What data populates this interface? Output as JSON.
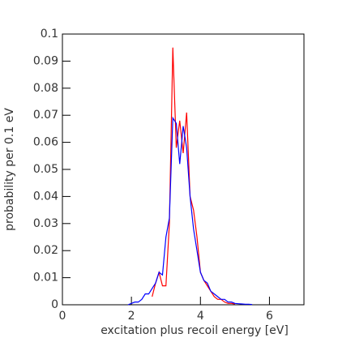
{
  "chart_data": {
    "type": "line",
    "xlabel": "excitation plus recoil energy    [eV]",
    "ylabel": "probability per 0.1 eV",
    "x": [
      1.9,
      2.0,
      2.1,
      2.2,
      2.3,
      2.4,
      2.5,
      2.6,
      2.7,
      2.8,
      2.9,
      3.0,
      3.1,
      3.2,
      3.3,
      3.4,
      3.5,
      3.6,
      3.7,
      3.8,
      3.9,
      4.0,
      4.1,
      4.2,
      4.3,
      4.4,
      4.5,
      4.6,
      4.7,
      4.8,
      4.9,
      5.0,
      5.1,
      5.2,
      5.3,
      5.4,
      5.5
    ],
    "series": [
      {
        "color": "#ff0000",
        "values": [
          null,
          null,
          null,
          null,
          null,
          null,
          null,
          0.003,
          0.008,
          0.012,
          0.007,
          0.007,
          0.03,
          0.095,
          0.058,
          0.068,
          0.056,
          0.071,
          0.04,
          0.035,
          0.025,
          0.012,
          0.009,
          0.007,
          0.005,
          0.003,
          0.002,
          0.002,
          0.001,
          0.0005,
          0.0005,
          0.0003,
          null,
          null,
          null,
          null,
          null
        ]
      },
      {
        "color": "#0000ff",
        "values": [
          0,
          0.0005,
          0.001,
          0.001,
          0.002,
          0.004,
          0.004,
          0.006,
          0.008,
          0.012,
          0.011,
          0.025,
          0.032,
          0.069,
          0.067,
          0.052,
          0.066,
          0.058,
          0.04,
          0.028,
          0.02,
          0.012,
          0.009,
          0.008,
          0.005,
          0.004,
          0.003,
          0.002,
          0.002,
          0.001,
          0.001,
          0.0005,
          0.0004,
          0.0003,
          0.0002,
          0.0002,
          0.0001
        ]
      }
    ],
    "xlim": [
      0,
      7
    ],
    "xticks": [
      0,
      2,
      4,
      6
    ],
    "ylim": [
      0,
      0.1
    ],
    "yticks": [
      0,
      0.01,
      0.02,
      0.03,
      0.04,
      0.05,
      0.06,
      0.07,
      0.08,
      0.09,
      0.1
    ]
  }
}
